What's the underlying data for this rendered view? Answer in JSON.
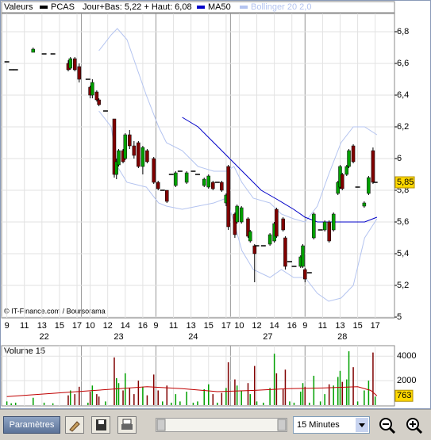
{
  "chart_data": {
    "type": "candlestick",
    "header_label": "Valeurs",
    "name": "PCAS",
    "color": "#000000",
    "day_range": "Jour+Bas: 5,22 + Haut: 6,08",
    "credit": "© IT-Finance.com / Boursorama",
    "up_color": "#00a000",
    "down_color": "#800000",
    "flat_color": "#000000",
    "xlim": [
      -0.6,
      44.2
    ],
    "ylim": [
      5,
      6.9
    ],
    "yticks": [
      5,
      {
        "value": 5.2,
        "label": "5,2"
      },
      {
        "value": 5.4,
        "label": "5,4"
      },
      {
        "value": 5.6,
        "label": "5,6"
      },
      {
        "value": 5.8,
        "label": "5,8"
      },
      6,
      {
        "value": 6.2,
        "label": "6,2"
      },
      {
        "value": 6.4,
        "label": "6,4"
      },
      {
        "value": 6.6,
        "label": "6,6"
      },
      {
        "value": 6.8,
        "label": "6,8"
      }
    ],
    "xticks": [
      {
        "value": 0,
        "label": "9"
      },
      {
        "value": 2,
        "label": "11"
      },
      {
        "value": 4,
        "label": "13"
      },
      {
        "value": 6,
        "label": "15"
      },
      {
        "value": 8,
        "label": "17"
      },
      {
        "value": 9.5,
        "label": "10"
      },
      {
        "value": 11.5,
        "label": "12"
      },
      {
        "value": 13.5,
        "label": "14"
      },
      {
        "value": 15.5,
        "label": "16"
      },
      {
        "value": 17,
        "label": "9"
      },
      {
        "value": 19,
        "label": "11"
      },
      {
        "value": 21,
        "label": "13"
      },
      {
        "value": 23,
        "label": "15"
      },
      {
        "value": 25,
        "label": "17"
      },
      {
        "value": 26.5,
        "label": "10"
      },
      {
        "value": 28.5,
        "label": "12"
      },
      {
        "value": 30.5,
        "label": "14"
      },
      {
        "value": 32.5,
        "label": "16"
      },
      {
        "value": 34,
        "label": "9"
      },
      {
        "value": 36,
        "label": "11"
      },
      {
        "value": 38,
        "label": "13"
      },
      {
        "value": 40,
        "label": "15"
      },
      {
        "value": 42,
        "label": "17"
      }
    ],
    "day_ticks": [
      {
        "value": 4.25,
        "label": "22"
      },
      {
        "value": 12.75,
        "label": "23"
      },
      {
        "value": 21.25,
        "label": "24"
      },
      {
        "value": 29.75,
        "label": "27"
      },
      {
        "value": 38.25,
        "label": "28"
      }
    ],
    "separators": [
      8.5,
      17,
      25.5,
      34
    ],
    "grid": true,
    "x": [
      0,
      0.5,
      1,
      3,
      4.25,
      5.25,
      7,
      7.25,
      7.75,
      8.25,
      9.25,
      9.5,
      9.75,
      10.25,
      10.5,
      11.25,
      12.25,
      12.5,
      12.75,
      13.25,
      13.5,
      14,
      14.5,
      15,
      15.5,
      16,
      16.75,
      17.25,
      17.75,
      18.25,
      18.75,
      19.25,
      19.75,
      20.5,
      21.25,
      21.75,
      22.5,
      23,
      23.5,
      24,
      24.5,
      25,
      25.25,
      26,
      26.25,
      26.75,
      27.5,
      27.75,
      28.25,
      28.5,
      29.25,
      30,
      30.5,
      30.75,
      31.5,
      31.75,
      32.25,
      32.75,
      33.5,
      33.75,
      34,
      34.5,
      35,
      35.75,
      36.25,
      36.75,
      37.25,
      37.75,
      38,
      38.25,
      38.75,
      39,
      39.5,
      40,
      40.75,
      41.25,
      41.75,
      42
    ],
    "open": [
      6.61,
      6.56,
      6.56,
      6.67,
      6.66,
      6.66,
      6.6,
      6.57,
      6.63,
      6.58,
      6.5,
      6.45,
      6.4,
      6.42,
      6.37,
      6.3,
      6.25,
      5.9,
      5.96,
      6.05,
      6.0,
      6.15,
      6.08,
      6.1,
      5.95,
      6.05,
      6.0,
      5.85,
      5.8,
      5.8,
      5.9,
      5.83,
      5.92,
      5.85,
      5.92,
      5.9,
      5.83,
      5.82,
      5.85,
      5.85,
      5.85,
      5.72,
      5.95,
      5.65,
      5.6,
      5.6,
      5.62,
      5.48,
      5.45,
      5.45,
      5.45,
      5.46,
      5.48,
      5.68,
      5.62,
      5.5,
      5.35,
      5.32,
      5.32,
      5.32,
      5.3,
      5.28,
      5.5,
      5.55,
      5.55,
      5.6,
      5.55,
      5.78,
      5.82,
      5.9,
      5.9,
      5.95,
      6.08,
      5.82,
      5.7,
      5.78,
      6.05,
      5.85
    ],
    "high": [
      6.61,
      6.56,
      6.56,
      6.7,
      6.66,
      6.66,
      6.62,
      6.64,
      6.64,
      6.6,
      6.5,
      6.46,
      6.5,
      6.43,
      6.38,
      6.3,
      6.25,
      6.0,
      6.06,
      6.06,
      6.16,
      6.18,
      6.11,
      6.11,
      6.08,
      6.06,
      6.01,
      5.86,
      5.8,
      5.8,
      5.9,
      5.92,
      5.92,
      5.92,
      5.92,
      5.9,
      5.88,
      5.9,
      5.86,
      5.85,
      5.86,
      5.78,
      5.96,
      5.66,
      5.71,
      5.7,
      5.63,
      5.55,
      5.46,
      5.45,
      5.45,
      5.53,
      5.6,
      5.69,
      5.63,
      5.51,
      5.35,
      5.32,
      5.39,
      5.46,
      5.31,
      5.28,
      5.66,
      5.55,
      5.61,
      5.61,
      5.66,
      5.86,
      5.96,
      5.91,
      5.96,
      6.06,
      6.09,
      5.82,
      5.73,
      5.89,
      6.07,
      5.85
    ],
    "low": [
      6.61,
      6.56,
      6.56,
      6.67,
      6.66,
      6.66,
      6.55,
      6.56,
      6.55,
      6.48,
      6.5,
      6.38,
      6.38,
      6.36,
      6.33,
      6.3,
      5.88,
      5.87,
      5.95,
      5.97,
      5.99,
      6.06,
      6.0,
      5.94,
      5.9,
      5.97,
      5.84,
      5.8,
      5.8,
      5.72,
      5.9,
      5.82,
      5.92,
      5.84,
      5.92,
      5.9,
      5.82,
      5.81,
      5.8,
      5.85,
      5.79,
      5.7,
      5.55,
      5.5,
      5.59,
      5.59,
      5.5,
      5.47,
      5.22,
      5.45,
      5.45,
      5.45,
      5.47,
      5.5,
      5.54,
      5.3,
      5.35,
      5.32,
      5.31,
      5.31,
      5.22,
      5.28,
      5.49,
      5.55,
      5.54,
      5.47,
      5.54,
      5.77,
      5.81,
      5.8,
      5.89,
      5.94,
      5.97,
      5.82,
      5.69,
      5.77,
      5.84,
      5.85
    ],
    "close": [
      6.61,
      6.56,
      6.56,
      6.69,
      6.66,
      6.66,
      6.56,
      6.63,
      6.56,
      6.5,
      6.5,
      6.4,
      6.48,
      6.37,
      6.34,
      6.3,
      5.9,
      5.98,
      6.05,
      5.98,
      6.15,
      6.08,
      6.02,
      5.95,
      6.07,
      5.98,
      5.85,
      5.81,
      5.8,
      5.73,
      5.9,
      5.91,
      5.92,
      5.91,
      5.92,
      5.9,
      5.87,
      5.89,
      5.81,
      5.85,
      5.8,
      5.77,
      5.57,
      5.52,
      5.7,
      5.69,
      5.51,
      5.54,
      5.4,
      5.45,
      5.45,
      5.52,
      5.59,
      5.51,
      5.55,
      5.32,
      5.35,
      5.32,
      5.38,
      5.45,
      5.24,
      5.28,
      5.65,
      5.55,
      5.6,
      5.48,
      5.65,
      5.85,
      5.95,
      5.81,
      5.95,
      6.05,
      5.98,
      5.82,
      5.72,
      5.88,
      5.85,
      5.85
    ],
    "last_price": {
      "value": 5.85,
      "label": "5,85"
    },
    "ma50": {
      "name": "MA50",
      "color": "#0000c8",
      "x": [
        20,
        21.8,
        23.6,
        25.4,
        27.2,
        29,
        30.9,
        32.7,
        34,
        35.4,
        37.2,
        39,
        40.8,
        42.2
      ],
      "values": [
        6.26,
        6.2,
        6.1,
        6.0,
        5.9,
        5.8,
        5.74,
        5.68,
        5.63,
        5.6,
        5.6,
        5.6,
        5.6,
        5.63
      ]
    },
    "bollinger": {
      "name": "Bollinger 20 2,0",
      "color": "#b4c4f0",
      "x": [
        10.5,
        11.9,
        12.6,
        13.7,
        15.9,
        17.3,
        18.2,
        20,
        21.8,
        23.6,
        25,
        25.9,
        26.8,
        28.1,
        30,
        31.3,
        32.7,
        34,
        35.4,
        36.7,
        38.1,
        39.5,
        40.8,
        42.2
      ],
      "upper": [
        6.68,
        6.78,
        6.82,
        6.75,
        6.4,
        6.2,
        6.1,
        6.05,
        5.95,
        5.92,
        5.92,
        5.95,
        5.85,
        5.75,
        5.72,
        5.65,
        5.62,
        5.6,
        5.7,
        5.9,
        6.1,
        6.2,
        6.2,
        6.15
      ],
      "lower": [
        6.3,
        6.2,
        5.95,
        5.85,
        5.82,
        5.72,
        5.7,
        5.68,
        5.7,
        5.72,
        5.75,
        5.6,
        5.42,
        5.3,
        5.25,
        5.3,
        5.25,
        5.25,
        5.15,
        5.1,
        5.12,
        5.2,
        5.5,
        5.62
      ]
    },
    "volume": {
      "title": "Volume 15",
      "ylim": [
        0,
        4600
      ],
      "yticks": [
        2000,
        4000
      ],
      "values": [
        300,
        150,
        200,
        600,
        200,
        150,
        800,
        1200,
        900,
        1500,
        200,
        1100,
        1600,
        900,
        700,
        300,
        3900,
        2200,
        1800,
        1200,
        2600,
        1400,
        900,
        2000,
        1500,
        800,
        2500,
        1200,
        300,
        1600,
        200,
        900,
        300,
        1100,
        200,
        300,
        1300,
        1700,
        900,
        200,
        1000,
        1400,
        3500,
        2100,
        1600,
        1200,
        1800,
        900,
        3200,
        300,
        200,
        1400,
        4200,
        2600,
        1300,
        2900,
        300,
        200,
        1100,
        1800,
        1500,
        200,
        2400,
        300,
        900,
        1700,
        1600,
        2300,
        2800,
        1900,
        2100,
        4400,
        3100,
        300,
        1200,
        2000,
        4300,
        700
      ],
      "ma_color": "#c00000",
      "ma_x": [
        0,
        4,
        8,
        12,
        16,
        20,
        24,
        28,
        32,
        36,
        40,
        41.5,
        42.2
      ],
      "ma_values": [
        700,
        900,
        1100,
        1300,
        1500,
        1350,
        1100,
        1200,
        1350,
        1400,
        1500,
        1200,
        763
      ]
    }
  },
  "toolbar": {
    "button": "Paramètres",
    "interval": "15 Minutes"
  }
}
